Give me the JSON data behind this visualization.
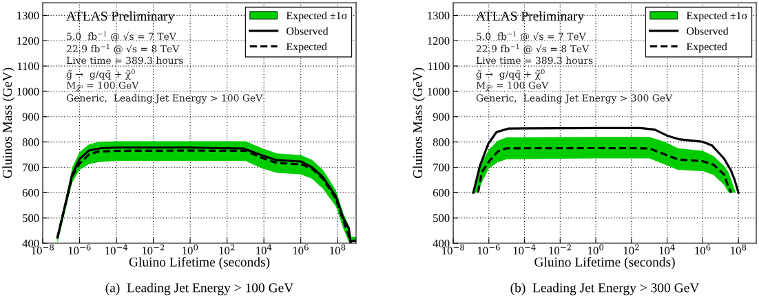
{
  "chart_data": [
    {
      "type": "line",
      "xlabel": "Gluino Lifetime (seconds)",
      "ylabel": "Gluinos Mass (GeV)",
      "log": "x",
      "grid": true,
      "legend": "top right",
      "xlim": [
        1e-08,
        1000000000.0
      ],
      "ylim": [
        400,
        1350
      ],
      "xticks": [
        {
          "value": 1e-08,
          "label": "10$^{−8}$"
        },
        {
          "value": 1e-06,
          "label": "10$^{−6}$"
        },
        {
          "value": 0.0001,
          "label": "10$^{−4}$"
        },
        {
          "value": 0.01,
          "label": "10$^{−2}$"
        },
        {
          "value": 1,
          "label": "10$^{0}$"
        },
        {
          "value": 100,
          "label": "10$^{2}$"
        },
        {
          "value": 10000.0,
          "label": "10$^{4}$"
        },
        {
          "value": 1000000.0,
          "label": "10$^{6}$"
        },
        {
          "value": 100000000.0,
          "label": "10$^{8}$"
        }
      ],
      "yticks": [
        400,
        500,
        600,
        700,
        800,
        900,
        1000,
        1100,
        1200,
        1300
      ],
      "annotations": [
        "ATLAS Preliminary",
        "5.0  fb$^{−1}$ @ √s = 7 TeV",
        "22.9 fb$^{−1}$ @ √s = 8 TeV",
        "Live time = 389.3 hours",
        "g̃ →  g/qq̄ + χ̃$^{0}$",
        "M$_{χ̃⁰}$ = 100 GeV",
        "Generic,  Leading Jet Energy > 100 GeV",
        "(a)  Leading Jet Energy > 100 GeV"
      ],
      "series": [
        {
          "name": "Expected ±1σ",
          "type": "area",
          "color": "#00cc00"
        },
        {
          "name": "Observed",
          "type": "line",
          "color": "#000000",
          "line_style": "solid",
          "x": [
            6.3e-08,
            1.6e-07,
            4e-07,
            1e-06,
            3.2e-06,
            1.6e-05,
            0.0001,
            1,
            800,
            8000,
            50000.0,
            1000000.0,
            4000000.0,
            16000000.0,
            80000000.0,
            200000000.0,
            400000000.0,
            500000000.0,
            560000000.0,
            1000000000.0
          ],
          "values": [
            422,
            546,
            671,
            733,
            766,
            776,
            778,
            778,
            774,
            747,
            728,
            723,
            700,
            661,
            585,
            499,
            460,
            403,
            410,
            410
          ]
        },
        {
          "name": "Expected",
          "type": "line",
          "color": "#000000",
          "line_style": "dashed",
          "x": [
            6.3e-08,
            1.6e-07,
            4e-07,
            1e-06,
            3.2e-06,
            1e-05,
            0.0001,
            1,
            1000,
            8000,
            50000.0,
            1000000.0,
            4000000.0,
            16000000.0,
            80000000.0,
            200000000.0,
            400000000.0,
            560000000.0,
            1000000000.0
          ],
          "values": [
            422,
            546,
            665,
            715,
            750,
            762,
            765,
            766,
            765,
            737,
            717,
            712,
            695,
            655,
            575,
            490,
            430,
            403,
            null
          ],
          "lower": [
            400,
            520,
            640,
            690,
            712,
            720,
            725,
            725,
            725,
            695,
            678,
            672,
            655,
            615,
            545,
            460,
            405,
            405,
            405
          ],
          "upper": [
            430,
            560,
            700,
            760,
            790,
            800,
            803,
            803,
            803,
            775,
            755,
            748,
            730,
            690,
            610,
            520,
            470,
            425,
            425
          ]
        }
      ]
    },
    {
      "type": "line",
      "xlabel": "Gluino Lifetime (seconds)",
      "ylabel": "Gluinos Mass (GeV)",
      "log": "x",
      "grid": true,
      "legend": "top right",
      "xlim": [
        1e-08,
        1000000000.0
      ],
      "ylim": [
        400,
        1350
      ],
      "xticks": [
        {
          "value": 1e-08,
          "label": "10$^{−8}$"
        },
        {
          "value": 1e-06,
          "label": "10$^{−6}$"
        },
        {
          "value": 0.0001,
          "label": "10$^{−4}$"
        },
        {
          "value": 0.01,
          "label": "10$^{−2}$"
        },
        {
          "value": 1,
          "label": "10$^{0}$"
        },
        {
          "value": 100,
          "label": "10$^{2}$"
        },
        {
          "value": 10000.0,
          "label": "10$^{4}$"
        },
        {
          "value": 1000000.0,
          "label": "10$^{6}$"
        },
        {
          "value": 100000000.0,
          "label": "10$^{8}$"
        }
      ],
      "yticks": [
        400,
        500,
        600,
        700,
        800,
        900,
        1000,
        1100,
        1200,
        1300
      ],
      "annotations": [
        "ATLAS Preliminary",
        "5.0  fb$^{−1}$ @ √s = 7 TeV",
        "22.9 fb$^{−1}$ @ √s = 8 TeV",
        "Live time = 389.3 hours",
        "g̃ →  g/qq̄ + χ̃$^{0}$",
        "M$_{χ̃⁰}$ = 100 GeV",
        "Generic,  Leading Jet Energy > 300 GeV",
        "(b)  Leading Jet Energy > 300 GeV"
      ],
      "series": [
        {
          "name": "Expected ±1σ",
          "type": "area",
          "color": "#00cc00"
        },
        {
          "name": "Observed",
          "type": "line",
          "color": "#000000",
          "line_style": "solid",
          "x": [
            1.35e-07,
            3.2e-07,
            9.3e-07,
            2.7e-06,
            1.26e-05,
            1,
            316,
            2000,
            10000.0,
            45000.0,
            950000.0,
            3200000.0,
            15000000.0,
            38000000.0,
            60000000.0,
            100000000.0
          ],
          "values": [
            600,
            707,
            793,
            839,
            853,
            855,
            855,
            849,
            825,
            811,
            801,
            787,
            736,
            688,
            652,
            600
          ]
        },
        {
          "name": "Expected",
          "type": "line",
          "color": "#000000",
          "line_style": "dashed",
          "x": [
            1.6e-07,
            2.5e-07,
            4e-07,
            1e-06,
            3.2e-06,
            1e-05,
            1,
            1000,
            8000,
            40000.0,
            1000000.0,
            4000000.0,
            16000000.0,
            28000000.0,
            40000000.0,
            70000000.0
          ],
          "values": [
            null,
            600,
            680,
            722,
            763,
            775,
            776,
            775,
            750,
            731,
            724,
            710,
            671,
            620,
            600,
            null
          ],
          "lower": [
            600,
            600,
            640,
            695,
            720,
            732,
            735,
            735,
            710,
            690,
            685,
            670,
            630,
            600,
            600,
            600
          ],
          "upper": [
            605,
            670,
            720,
            770,
            805,
            818,
            820,
            820,
            800,
            775,
            765,
            745,
            705,
            680,
            650,
            600
          ]
        }
      ]
    }
  ]
}
